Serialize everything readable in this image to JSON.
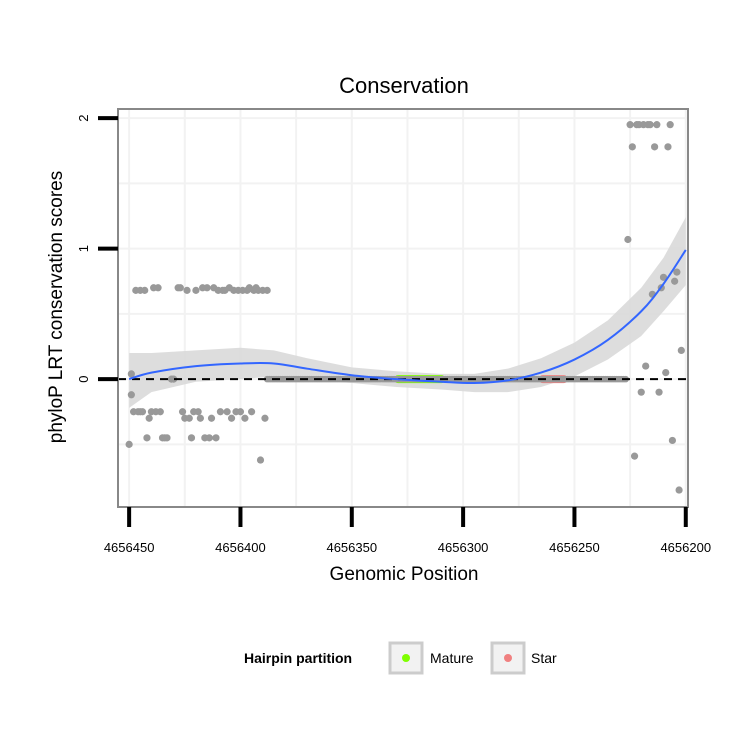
{
  "chart_data": {
    "type": "scatter",
    "title": "Conservation",
    "xlabel": "Genomic Position",
    "ylabel": "phyloP LRT conservation scores",
    "xlim": [
      4656455,
      4656199
    ],
    "x_reversed": true,
    "ylim": [
      -0.98,
      2.07
    ],
    "x_ticks": [
      4656450,
      4656400,
      4656350,
      4656300,
      4656250,
      4656200
    ],
    "x_tick_labels": [
      "4656450",
      "4656400",
      "4656350",
      "4656300",
      "4656250",
      "4656200"
    ],
    "y_ticks": [
      0,
      1,
      2
    ],
    "y_tick_labels": [
      "0",
      "1",
      "2"
    ],
    "grid": true,
    "reference_line": {
      "y": 0,
      "style": "dashed",
      "color": "#000000"
    },
    "colors": {
      "points": "#999999",
      "smooth": "#3366ff",
      "ribbon": "#d9d9d9",
      "mature": "#7fff00",
      "star": "#f08080",
      "panel_border": "#888888",
      "grid": "#f2f2f2"
    },
    "legend": {
      "title": "Hairpin partition",
      "placement": "bottom",
      "entries": [
        {
          "label": "Mature",
          "color": "#7fff00"
        },
        {
          "label": "Star",
          "color": "#f08080"
        }
      ]
    },
    "partitions": [
      {
        "name": "Mature",
        "x_start": 4656331,
        "x_end": 4656308
      },
      {
        "name": "Star",
        "x_start": 4656266,
        "x_end": 4656253
      }
    ],
    "zero_run": {
      "x_start": 4656388,
      "x_end": 4656227,
      "step": 1,
      "y": 0
    },
    "points": [
      {
        "x": 4656450,
        "y": -0.5
      },
      {
        "x": 4656449,
        "y": -0.12
      },
      {
        "x": 4656449,
        "y": 0.04
      },
      {
        "x": 4656448,
        "y": -0.25
      },
      {
        "x": 4656446,
        "y": -0.25
      },
      {
        "x": 4656445,
        "y": -0.25
      },
      {
        "x": 4656444,
        "y": -0.25
      },
      {
        "x": 4656447,
        "y": 0.68
      },
      {
        "x": 4656445,
        "y": 0.68
      },
      {
        "x": 4656443,
        "y": 0.68
      },
      {
        "x": 4656442,
        "y": -0.45
      },
      {
        "x": 4656441,
        "y": -0.3
      },
      {
        "x": 4656440,
        "y": -0.25
      },
      {
        "x": 4656439,
        "y": 0.7
      },
      {
        "x": 4656438,
        "y": -0.25
      },
      {
        "x": 4656437,
        "y": 0.7
      },
      {
        "x": 4656436,
        "y": -0.25
      },
      {
        "x": 4656435,
        "y": -0.45
      },
      {
        "x": 4656434,
        "y": -0.45
      },
      {
        "x": 4656433,
        "y": -0.45
      },
      {
        "x": 4656431,
        "y": 0.0
      },
      {
        "x": 4656430,
        "y": 0.0
      },
      {
        "x": 4656428,
        "y": 0.7
      },
      {
        "x": 4656427,
        "y": 0.7
      },
      {
        "x": 4656426,
        "y": -0.25
      },
      {
        "x": 4656425,
        "y": -0.3
      },
      {
        "x": 4656424,
        "y": 0.68
      },
      {
        "x": 4656423,
        "y": -0.3
      },
      {
        "x": 4656422,
        "y": -0.45
      },
      {
        "x": 4656421,
        "y": -0.25
      },
      {
        "x": 4656420,
        "y": 0.68
      },
      {
        "x": 4656419,
        "y": -0.25
      },
      {
        "x": 4656418,
        "y": -0.3
      },
      {
        "x": 4656417,
        "y": 0.7
      },
      {
        "x": 4656416,
        "y": -0.45
      },
      {
        "x": 4656415,
        "y": 0.7
      },
      {
        "x": 4656414,
        "y": -0.45
      },
      {
        "x": 4656413,
        "y": -0.3
      },
      {
        "x": 4656412,
        "y": 0.7
      },
      {
        "x": 4656411,
        "y": -0.45
      },
      {
        "x": 4656410,
        "y": 0.68
      },
      {
        "x": 4656409,
        "y": -0.25
      },
      {
        "x": 4656408,
        "y": 0.68
      },
      {
        "x": 4656407,
        "y": 0.68
      },
      {
        "x": 4656406,
        "y": -0.25
      },
      {
        "x": 4656405,
        "y": 0.7
      },
      {
        "x": 4656404,
        "y": -0.3
      },
      {
        "x": 4656403,
        "y": 0.68
      },
      {
        "x": 4656402,
        "y": -0.25
      },
      {
        "x": 4656401,
        "y": 0.68
      },
      {
        "x": 4656400,
        "y": -0.25
      },
      {
        "x": 4656399,
        "y": 0.68
      },
      {
        "x": 4656398,
        "y": -0.3
      },
      {
        "x": 4656397,
        "y": 0.68
      },
      {
        "x": 4656396,
        "y": 0.7
      },
      {
        "x": 4656395,
        "y": -0.25
      },
      {
        "x": 4656394,
        "y": 0.68
      },
      {
        "x": 4656393,
        "y": 0.7
      },
      {
        "x": 4656392,
        "y": 0.68
      },
      {
        "x": 4656391,
        "y": -0.62
      },
      {
        "x": 4656390,
        "y": 0.68
      },
      {
        "x": 4656389,
        "y": -0.3
      },
      {
        "x": 4656388,
        "y": 0.68
      },
      {
        "x": 4656226,
        "y": 1.07
      },
      {
        "x": 4656225,
        "y": 1.95
      },
      {
        "x": 4656224,
        "y": 1.78
      },
      {
        "x": 4656223,
        "y": -0.59
      },
      {
        "x": 4656222,
        "y": 1.95
      },
      {
        "x": 4656221,
        "y": 1.95
      },
      {
        "x": 4656220,
        "y": -0.1
      },
      {
        "x": 4656219,
        "y": 1.95
      },
      {
        "x": 4656218,
        "y": 0.1
      },
      {
        "x": 4656217,
        "y": 1.95
      },
      {
        "x": 4656216,
        "y": 1.95
      },
      {
        "x": 4656215,
        "y": 0.65
      },
      {
        "x": 4656214,
        "y": 1.78
      },
      {
        "x": 4656213,
        "y": 1.95
      },
      {
        "x": 4656212,
        "y": -0.1
      },
      {
        "x": 4656211,
        "y": 0.7
      },
      {
        "x": 4656210,
        "y": 0.78
      },
      {
        "x": 4656209,
        "y": 0.05
      },
      {
        "x": 4656208,
        "y": 1.78
      },
      {
        "x": 4656207,
        "y": 1.95
      },
      {
        "x": 4656206,
        "y": -0.47
      },
      {
        "x": 4656205,
        "y": 0.75
      },
      {
        "x": 4656204,
        "y": 0.82
      },
      {
        "x": 4656203,
        "y": -0.85
      },
      {
        "x": 4656202,
        "y": 0.22
      }
    ],
    "smooth_curve": [
      {
        "x": 4656450,
        "y": 0.0,
        "lo": -0.22,
        "hi": 0.2
      },
      {
        "x": 4656440,
        "y": 0.05,
        "lo": -0.1,
        "hi": 0.2
      },
      {
        "x": 4656420,
        "y": 0.1,
        "lo": -0.02,
        "hi": 0.22
      },
      {
        "x": 4656400,
        "y": 0.12,
        "lo": 0.0,
        "hi": 0.24
      },
      {
        "x": 4656385,
        "y": 0.12,
        "lo": 0.02,
        "hi": 0.22
      },
      {
        "x": 4656370,
        "y": 0.08,
        "lo": 0.0,
        "hi": 0.16
      },
      {
        "x": 4656350,
        "y": 0.03,
        "lo": -0.03,
        "hi": 0.09
      },
      {
        "x": 4656330,
        "y": 0.0,
        "lo": -0.06,
        "hi": 0.06
      },
      {
        "x": 4656310,
        "y": -0.02,
        "lo": -0.08,
        "hi": 0.04
      },
      {
        "x": 4656295,
        "y": -0.03,
        "lo": -0.1,
        "hi": 0.04
      },
      {
        "x": 4656280,
        "y": -0.01,
        "lo": -0.1,
        "hi": 0.08
      },
      {
        "x": 4656265,
        "y": 0.05,
        "lo": -0.06,
        "hi": 0.16
      },
      {
        "x": 4656250,
        "y": 0.15,
        "lo": 0.02,
        "hi": 0.28
      },
      {
        "x": 4656235,
        "y": 0.3,
        "lo": 0.15,
        "hi": 0.45
      },
      {
        "x": 4656220,
        "y": 0.52,
        "lo": 0.33,
        "hi": 0.7
      },
      {
        "x": 4656210,
        "y": 0.73,
        "lo": 0.52,
        "hi": 0.93
      },
      {
        "x": 4656200,
        "y": 0.99,
        "lo": 0.72,
        "hi": 1.24
      }
    ]
  }
}
